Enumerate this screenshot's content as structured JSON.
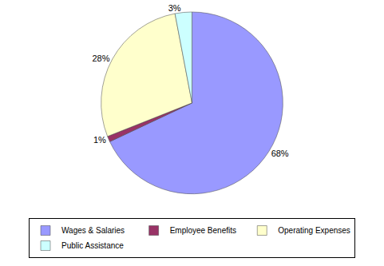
{
  "chart_data": {
    "type": "pie",
    "categories": [
      "Wages & Salaries",
      "Employee Benefits",
      "Operating Expenses",
      "Public Assistance"
    ],
    "values": [
      68,
      1,
      28,
      3
    ],
    "value_labels": [
      "68%",
      "1%",
      "28%",
      "3%"
    ],
    "colors": [
      "#9999ff",
      "#993366",
      "#ffffcc",
      "#ccffff"
    ],
    "data_labels": true,
    "legend": "bottom"
  }
}
